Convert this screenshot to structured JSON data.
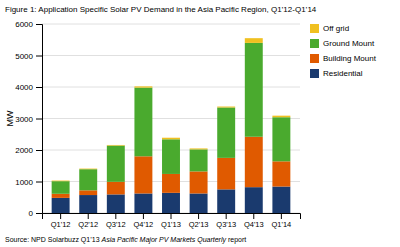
{
  "chart_data": {
    "type": "bar",
    "stacked": true,
    "title": "Figure 1: Application Specific Solar PV Demand in the Asia Pacific Region, Q1’12-Q1’14",
    "ylabel": "MW",
    "categories": [
      "Q1'12",
      "Q2'12",
      "Q3'12",
      "Q4'12",
      "Q1'13",
      "Q2'13",
      "Q3'13",
      "Q4'13",
      "Q1'14"
    ],
    "series": [
      {
        "name": "Residential",
        "color": "#1a3a6e",
        "values": [
          480,
          570,
          590,
          620,
          640,
          620,
          750,
          820,
          840
        ]
      },
      {
        "name": "Building Mount",
        "color": "#e05a00",
        "values": [
          130,
          150,
          400,
          1180,
          600,
          700,
          1000,
          1600,
          800
        ]
      },
      {
        "name": "Ground Mount",
        "color": "#4aaa2e",
        "values": [
          400,
          670,
          1150,
          2180,
          1100,
          700,
          1600,
          2980,
          1400
        ]
      },
      {
        "name": "Off grid",
        "color": "#f0c020",
        "values": [
          20,
          20,
          20,
          40,
          50,
          30,
          30,
          150,
          50
        ]
      }
    ],
    "ylim": [
      0,
      6000
    ],
    "yticks": [
      0,
      1000,
      2000,
      3000,
      4000,
      5000,
      6000
    ],
    "grid": true,
    "legend": "right",
    "annotations": [
      "Source: NPD Solarbuzz Q1’13",
      "Asia Pacific Major PV Markets Quarterly",
      "report"
    ]
  }
}
